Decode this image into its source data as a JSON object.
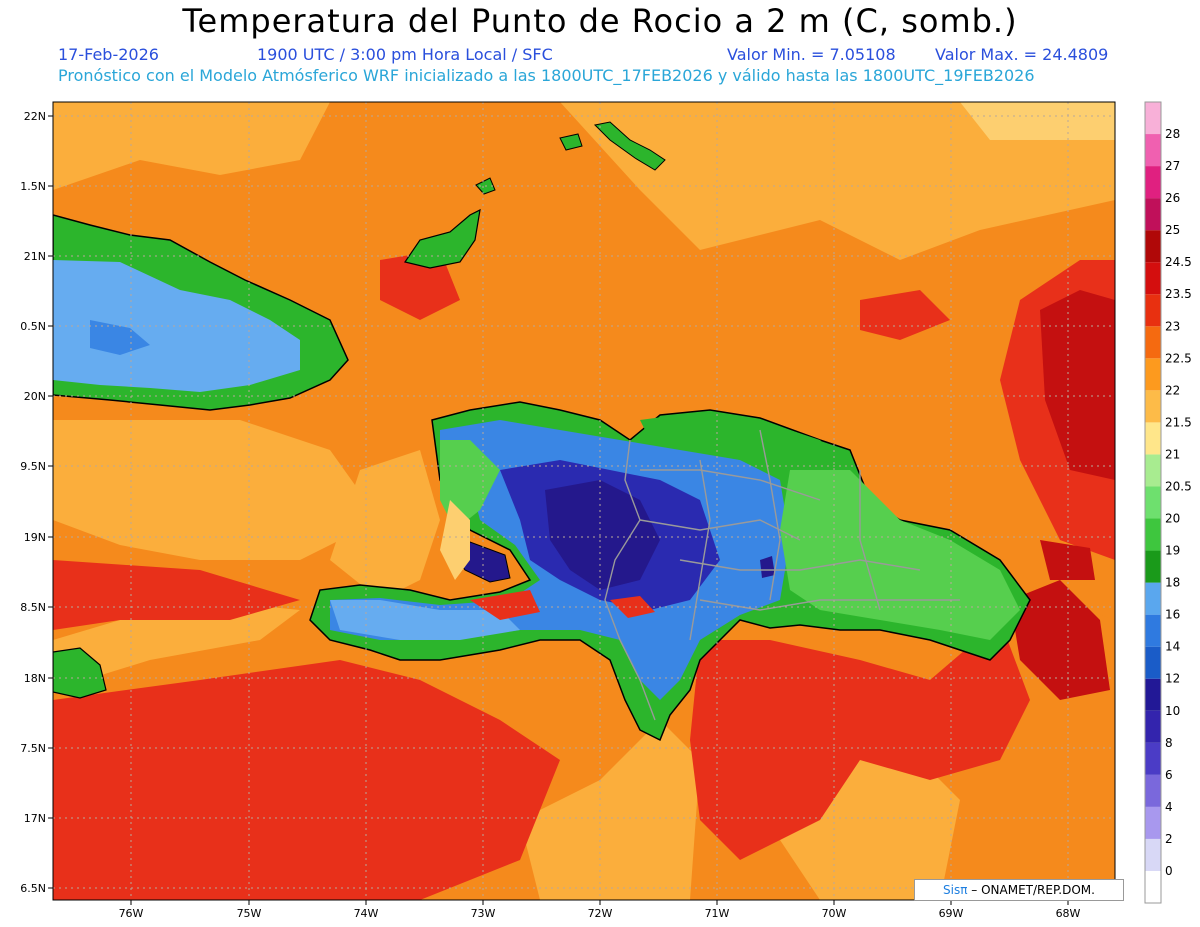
{
  "title": "Temperatura del Punto de Rocio a 2 m (C, somb.)",
  "date": "17-Feb-2026",
  "time": "1900 UTC / 3:00 pm Hora Local / SFC",
  "valmin": "Valor Min. = 7.05108",
  "valmax": "Valor Max. = 24.4809",
  "model_line": "Pronóstico con el Modelo Atmósferico WRF inicializado a las 1800UTC_17FEB2026 y válido hasta las  1800UTC_19FEB2026",
  "lat_ticks": [
    "22N",
    "1.5N",
    "21N",
    "0.5N",
    "20N",
    "9.5N",
    "19N",
    "8.5N",
    "18N",
    "7.5N",
    "17N",
    "6.5N"
  ],
  "lon_ticks": [
    "76W",
    "75W",
    "74W",
    "73W",
    "72W",
    "71W",
    "70W",
    "69W",
    "68W"
  ],
  "colorbar": {
    "levels": [
      "0",
      "2",
      "4",
      "6",
      "8",
      "10",
      "12",
      "14",
      "16",
      "18",
      "19",
      "20",
      "20.5",
      "21",
      "21.5",
      "22",
      "22.5",
      "23",
      "23.5",
      "24.5",
      "25",
      "26",
      "27",
      "28"
    ],
    "colors": [
      "#ffffff",
      "#d8d8f6",
      "#a898ee",
      "#7a68dc",
      "#4b3cc6",
      "#3324ad",
      "#221896",
      "#1a5cc8",
      "#2f7ae0",
      "#5aa7ee",
      "#1a9a1a",
      "#3ec63e",
      "#6ee06e",
      "#a8ec90",
      "#ffe68a",
      "#fdbb48",
      "#fd9a1e",
      "#f56a10",
      "#e83010",
      "#d40e0e",
      "#b00808",
      "#c0105a",
      "#e02080",
      "#f060b0",
      "#f8b0d8"
    ]
  },
  "credit_brand": "Sisπ",
  "credit_text": "– ONAMET/REP.DOM.",
  "palette": {
    "ocean_dark_orange": "#f58a1c",
    "ocean_orange": "#fbae3c",
    "ocean_light": "#fdcf70",
    "red": "#e8301a",
    "dark_red": "#c41010",
    "green": "#2cb52c",
    "light_green": "#56cf4e",
    "blue": "#3a86e4",
    "light_blue": "#66acf0",
    "navy": "#2a2ab0",
    "indigo": "#24188c"
  }
}
